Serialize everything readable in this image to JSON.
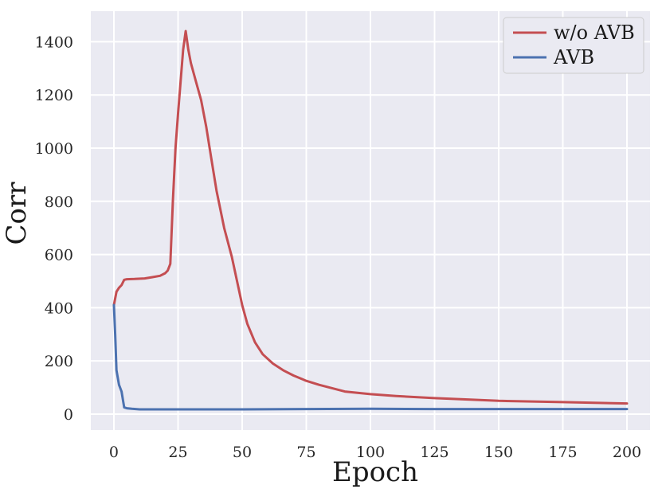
{
  "chart_data": {
    "type": "line",
    "title": "",
    "xlabel": "Epoch",
    "ylabel": "Corr",
    "xlim": [
      -9,
      209
    ],
    "ylim": [
      -60,
      1515
    ],
    "xticks": [
      0,
      25,
      50,
      75,
      100,
      125,
      150,
      175,
      200
    ],
    "yticks": [
      0,
      200,
      400,
      600,
      800,
      1000,
      1200,
      1400
    ],
    "grid": true,
    "legend_position": "top-right",
    "series": [
      {
        "name": "w/o AVB",
        "color": "#c44e52",
        "x": [
          0,
          1,
          2,
          3,
          4,
          5,
          8,
          12,
          15,
          18,
          20,
          21,
          22,
          23,
          24,
          25,
          26,
          27,
          28,
          29,
          30,
          32,
          34,
          36,
          38,
          40,
          43,
          46,
          50,
          52,
          55,
          58,
          62,
          66,
          70,
          75,
          80,
          90,
          100,
          110,
          125,
          150,
          175,
          200
        ],
        "y": [
          410,
          460,
          475,
          485,
          505,
          507,
          508,
          510,
          515,
          520,
          530,
          540,
          565,
          800,
          1000,
          1130,
          1250,
          1370,
          1440,
          1370,
          1320,
          1250,
          1180,
          1080,
          960,
          840,
          700,
          590,
          410,
          340,
          270,
          225,
          190,
          165,
          145,
          125,
          110,
          85,
          75,
          68,
          60,
          50,
          45,
          40
        ]
      },
      {
        "name": "AVB",
        "color": "#4c72b0",
        "x": [
          0,
          0.5,
          1,
          2,
          3,
          4,
          5,
          7,
          10,
          15,
          20,
          30,
          40,
          50,
          75,
          100,
          125,
          150,
          175,
          200
        ],
        "y": [
          410,
          300,
          165,
          110,
          85,
          25,
          22,
          20,
          18,
          18,
          18,
          18,
          18,
          18,
          19,
          20,
          19,
          19,
          19,
          19
        ]
      }
    ]
  }
}
